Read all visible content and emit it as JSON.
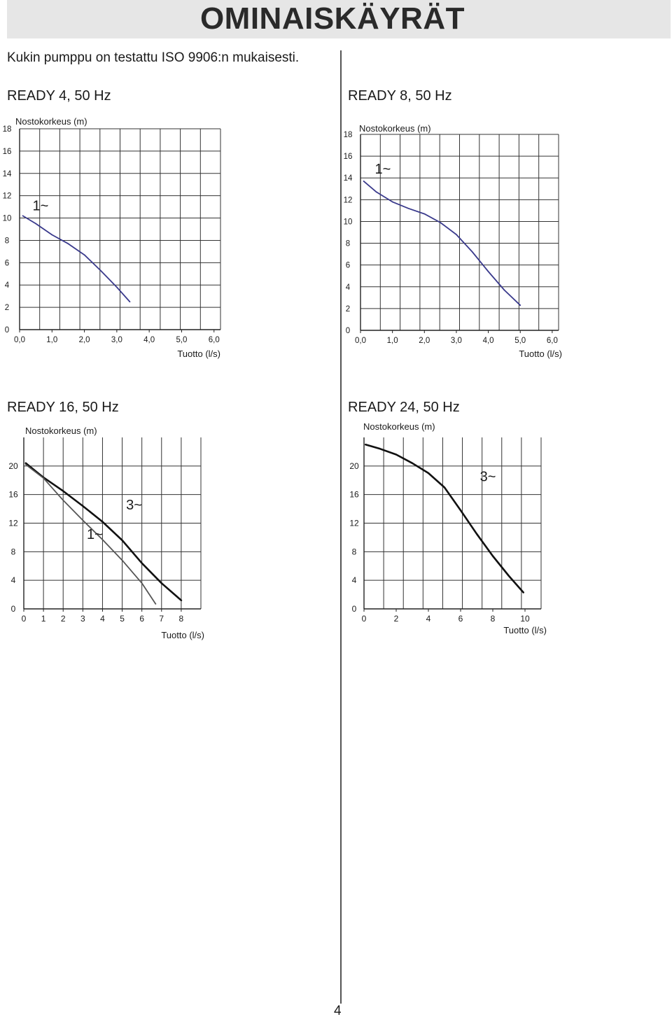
{
  "page": {
    "title": "OMINAISKÄYRÄT",
    "intro": "Kukin pumppu on testattu ISO 9906:n mukaisesti.",
    "page_number": "4"
  },
  "chart_data": [
    {
      "type": "line",
      "title": "READY 4, 50 Hz",
      "ylabel": "Nostokorkeus (m)",
      "xlabel": "Tuotto (l/s)",
      "x_ticks": [
        "0,0",
        "1,0",
        "2,0",
        "3,0",
        "4,0",
        "5,0",
        "6,0"
      ],
      "x_tick_values": [
        0,
        1,
        2,
        3,
        4,
        5,
        6
      ],
      "y_ticks": [
        "0",
        "2",
        "4",
        "6",
        "8",
        "10",
        "12",
        "14",
        "16",
        "18"
      ],
      "y_tick_values": [
        0,
        2,
        4,
        6,
        8,
        10,
        12,
        14,
        16,
        18
      ],
      "xlim": [
        0,
        6.2
      ],
      "ylim": [
        0,
        18
      ],
      "grid": true,
      "series": [
        {
          "name": "1~",
          "color": "#3a3a8c",
          "label_at": [
            0.4,
            10.7
          ],
          "points": [
            [
              0.1,
              10.2
            ],
            [
              0.5,
              9.5
            ],
            [
              1.0,
              8.5
            ],
            [
              1.5,
              7.7
            ],
            [
              2.0,
              6.7
            ],
            [
              2.5,
              5.3
            ],
            [
              3.0,
              3.8
            ],
            [
              3.4,
              2.5
            ]
          ]
        }
      ]
    },
    {
      "type": "line",
      "title": "READY 8, 50 Hz",
      "ylabel": "Nostokorkeus (m)",
      "xlabel": "Tuotto (l/s)",
      "x_ticks": [
        "0,0",
        "1,0",
        "2,0",
        "3,0",
        "4,0",
        "5,0",
        "6,0"
      ],
      "x_tick_values": [
        0,
        1,
        2,
        3,
        4,
        5,
        6
      ],
      "y_ticks": [
        "0",
        "2",
        "4",
        "6",
        "8",
        "10",
        "12",
        "14",
        "16",
        "18"
      ],
      "y_tick_values": [
        0,
        2,
        4,
        6,
        8,
        10,
        12,
        14,
        16,
        18
      ],
      "xlim": [
        0,
        6.2
      ],
      "ylim": [
        0,
        18
      ],
      "grid": true,
      "series": [
        {
          "name": "1~",
          "color": "#3a3a8c",
          "label_at": [
            0.45,
            14.4
          ],
          "points": [
            [
              0.1,
              13.7
            ],
            [
              0.5,
              12.7
            ],
            [
              1.0,
              11.8
            ],
            [
              1.5,
              11.2
            ],
            [
              2.0,
              10.7
            ],
            [
              2.5,
              9.9
            ],
            [
              3.0,
              8.8
            ],
            [
              3.5,
              7.2
            ],
            [
              4.0,
              5.4
            ],
            [
              4.5,
              3.7
            ],
            [
              5.0,
              2.3
            ]
          ]
        }
      ]
    },
    {
      "type": "line",
      "title": "READY 16, 50 Hz",
      "ylabel": "Nostokorkeus (m)",
      "xlabel": "Tuotto (l/s)",
      "x_ticks": [
        "0",
        "1",
        "2",
        "3",
        "4",
        "5",
        "6",
        "7",
        "8"
      ],
      "x_tick_values": [
        0,
        1,
        2,
        3,
        4,
        5,
        6,
        7,
        8
      ],
      "y_ticks": [
        "0",
        "4",
        "8",
        "12",
        "16",
        "20"
      ],
      "y_tick_values": [
        0,
        4,
        8,
        12,
        16,
        20
      ],
      "xlim": [
        0,
        9
      ],
      "ylim": [
        0,
        24
      ],
      "grid": true,
      "series": [
        {
          "name": "3~",
          "color": "#111111",
          "label_at": [
            5.2,
            13.9
          ],
          "points": [
            [
              0.1,
              20.4
            ],
            [
              1.0,
              18.4
            ],
            [
              2.0,
              16.5
            ],
            [
              3.0,
              14.4
            ],
            [
              4.0,
              12.2
            ],
            [
              5.0,
              9.6
            ],
            [
              6.0,
              6.4
            ],
            [
              7.0,
              3.6
            ],
            [
              8.0,
              1.2
            ]
          ]
        },
        {
          "name": "1~",
          "color": "#555555",
          "label_at": [
            3.2,
            9.8
          ],
          "points": [
            [
              0.1,
              20.2
            ],
            [
              1.0,
              18.3
            ],
            [
              2.0,
              15.2
            ],
            [
              3.0,
              12.4
            ],
            [
              4.0,
              9.7
            ],
            [
              5.0,
              6.8
            ],
            [
              6.0,
              3.6
            ],
            [
              6.7,
              0.7
            ]
          ]
        }
      ]
    },
    {
      "type": "line",
      "title": "READY 24, 50 Hz",
      "ylabel": "Nostokorkeus (m)",
      "xlabel": "Tuotto (l/s)",
      "x_ticks": [
        "0",
        "2",
        "4",
        "6",
        "8",
        "10"
      ],
      "x_tick_values": [
        0,
        2,
        4,
        6,
        8,
        10
      ],
      "y_ticks": [
        "0",
        "4",
        "8",
        "12",
        "16",
        "20"
      ],
      "y_tick_values": [
        0,
        4,
        8,
        12,
        16,
        20
      ],
      "xlim": [
        0,
        11
      ],
      "ylim": [
        0,
        24
      ],
      "grid": true,
      "series": [
        {
          "name": "3~",
          "color": "#111111",
          "label_at": [
            7.2,
            17.9
          ],
          "points": [
            [
              0.1,
              23.0
            ],
            [
              1.0,
              22.4
            ],
            [
              2.0,
              21.6
            ],
            [
              3.0,
              20.4
            ],
            [
              4.0,
              19.0
            ],
            [
              5.0,
              17.0
            ],
            [
              6.0,
              13.8
            ],
            [
              7.0,
              10.5
            ],
            [
              8.0,
              7.4
            ],
            [
              9.0,
              4.6
            ],
            [
              9.9,
              2.3
            ]
          ]
        }
      ]
    }
  ]
}
